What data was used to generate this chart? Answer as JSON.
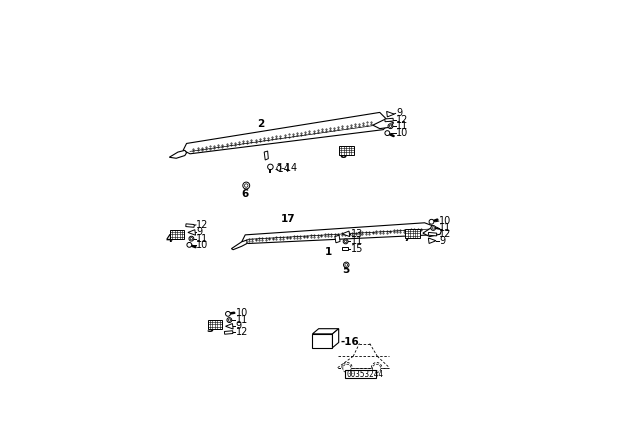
{
  "bg_color": "#ffffff",
  "diagram_id": "00353244",
  "label_fontsize": 7.5,
  "small_fontsize": 7.0,
  "rail2": {
    "x": [
      0.08,
      0.09,
      0.65,
      0.68,
      0.66,
      0.1,
      0.08
    ],
    "y": [
      0.72,
      0.74,
      0.83,
      0.8,
      0.78,
      0.71,
      0.72
    ]
  },
  "rail1": {
    "x": [
      0.25,
      0.26,
      0.78,
      0.82,
      0.8,
      0.27,
      0.25
    ],
    "y": [
      0.455,
      0.475,
      0.51,
      0.495,
      0.475,
      0.45,
      0.455
    ]
  }
}
